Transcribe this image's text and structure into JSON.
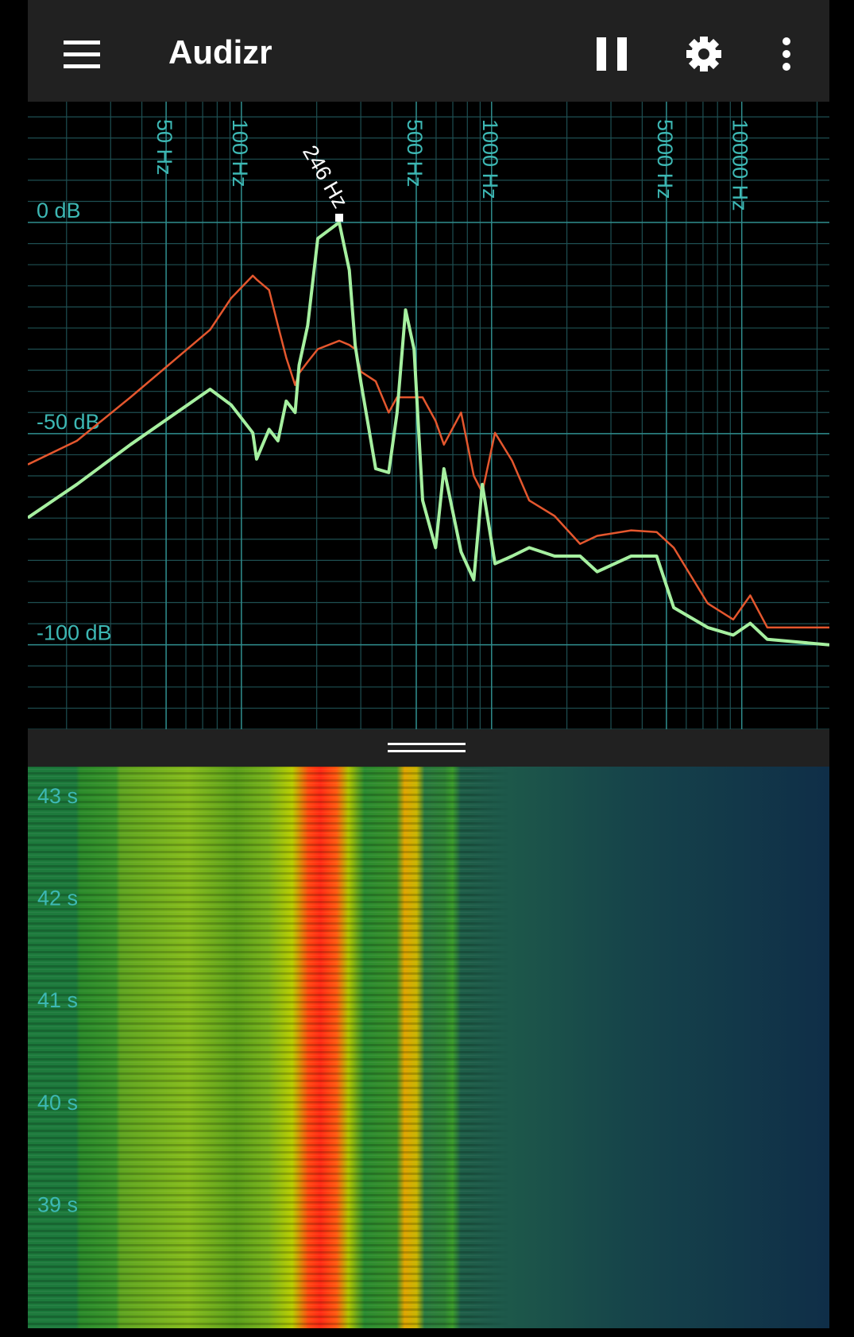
{
  "app_bar": {
    "title": "Audizr"
  },
  "chart_data": {
    "type": "line",
    "xscale": "log",
    "grid": true,
    "xlim": [
      14,
      22400
    ],
    "ylim": [
      -120,
      28.6
    ],
    "xticks": [
      {
        "value": 50,
        "label": "50 Hz"
      },
      {
        "value": 100,
        "label": "100 Hz"
      },
      {
        "value": 500,
        "label": "500 Hz"
      },
      {
        "value": 1000,
        "label": "1000 Hz"
      },
      {
        "value": 5000,
        "label": "5000 Hz"
      },
      {
        "value": 10000,
        "label": "10000 Hz"
      }
    ],
    "yticks": [
      {
        "value": 0,
        "label": "0 dB"
      },
      {
        "value": -50,
        "label": "-50 dB"
      },
      {
        "value": -100,
        "label": "-100 dB"
      }
    ],
    "annotations": [
      {
        "x": 246,
        "y": 0,
        "label": "246 Hz"
      }
    ],
    "x": [
      14,
      22,
      36,
      75,
      91,
      111,
      115,
      129,
      140,
      151,
      164,
      170,
      184,
      202,
      246,
      270,
      285,
      300,
      344,
      388,
      419,
      453,
      490,
      530,
      597,
      645,
      755,
      849,
      918,
      1032,
      1208,
      1413,
      1786,
      2259,
      2642,
      3614,
      4571,
      5346,
      7311,
      9247,
      10810,
      12650,
      22400
    ],
    "series": [
      {
        "color": "#e4572e",
        "values": [
          -57.3,
          -51.7,
          -41.4,
          -25.4,
          -17.9,
          -12.6,
          -13.5,
          -16,
          -24.4,
          -32,
          -38.5,
          -35.7,
          -33,
          -30,
          -28,
          -29,
          -30,
          -35.3,
          -37.6,
          -45,
          -41.4,
          -41.4,
          -41.4,
          -41.4,
          -47,
          -52.6,
          -45,
          -60,
          -63.9,
          -49.8,
          -56.4,
          -65.8,
          -69.5,
          -76.1,
          -74.2,
          -72.9,
          -73.3,
          -77,
          -90.2,
          -94,
          -88.3,
          -95.9,
          -95.9
        ]
      },
      {
        "color": "#a6f0a0",
        "values": [
          -69.9,
          -62,
          -52.6,
          -39.5,
          -43.2,
          -49.8,
          -56,
          -49,
          -51.7,
          -42.3,
          -45,
          -33.8,
          -24.4,
          -3.8,
          0,
          -11.3,
          -29.1,
          -37.6,
          -58.3,
          -59.2,
          -45.1,
          -20.7,
          -30,
          -65.8,
          -77,
          -58.3,
          -78,
          -84.6,
          -62,
          -80.8,
          -79,
          -77,
          -79,
          -79,
          -82.7,
          -79,
          -79,
          -91.2,
          -95.9,
          -97.7,
          -94.9,
          -98.7,
          -100
        ]
      }
    ]
  },
  "spectrogram": {
    "time_labels": [
      "43 s",
      "42 s",
      "41 s",
      "40 s",
      "39 s"
    ]
  }
}
